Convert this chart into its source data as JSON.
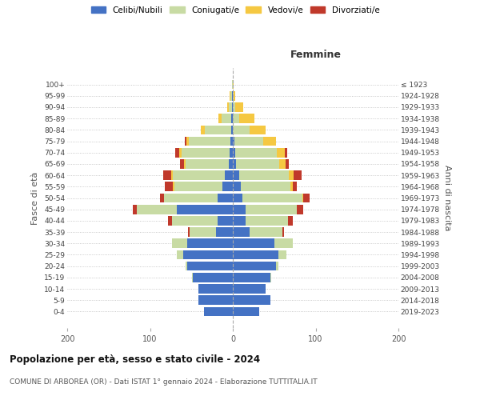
{
  "age_groups": [
    "0-4",
    "5-9",
    "10-14",
    "15-19",
    "20-24",
    "25-29",
    "30-34",
    "35-39",
    "40-44",
    "45-49",
    "50-54",
    "55-59",
    "60-64",
    "65-69",
    "70-74",
    "75-79",
    "80-84",
    "85-89",
    "90-94",
    "95-99",
    "100+"
  ],
  "birth_years": [
    "2019-2023",
    "2014-2018",
    "2009-2013",
    "2004-2008",
    "1999-2003",
    "1994-1998",
    "1989-1993",
    "1984-1988",
    "1979-1983",
    "1974-1978",
    "1969-1973",
    "1964-1968",
    "1959-1963",
    "1954-1958",
    "1949-1953",
    "1944-1948",
    "1939-1943",
    "1934-1938",
    "1929-1933",
    "1924-1928",
    "≤ 1923"
  ],
  "males": {
    "celibi": [
      35,
      42,
      42,
      48,
      55,
      60,
      55,
      20,
      18,
      68,
      18,
      13,
      10,
      5,
      4,
      3,
      2,
      2,
      1,
      1,
      0
    ],
    "coniugati": [
      0,
      0,
      0,
      1,
      2,
      8,
      18,
      32,
      55,
      48,
      65,
      58,
      62,
      52,
      58,
      50,
      32,
      12,
      4,
      2,
      1
    ],
    "vedovi": [
      0,
      0,
      0,
      0,
      0,
      0,
      0,
      0,
      0,
      0,
      0,
      1,
      2,
      2,
      3,
      3,
      5,
      3,
      2,
      1,
      0
    ],
    "divorziati": [
      0,
      0,
      0,
      0,
      0,
      0,
      0,
      2,
      5,
      5,
      5,
      10,
      10,
      5,
      5,
      2,
      0,
      0,
      0,
      0,
      0
    ]
  },
  "females": {
    "nubili": [
      32,
      45,
      40,
      45,
      52,
      55,
      50,
      20,
      15,
      15,
      12,
      10,
      8,
      4,
      3,
      2,
      0,
      0,
      0,
      0,
      0
    ],
    "coniugate": [
      0,
      0,
      0,
      1,
      3,
      10,
      22,
      40,
      52,
      62,
      72,
      60,
      60,
      52,
      50,
      35,
      20,
      8,
      3,
      1,
      0
    ],
    "vedove": [
      0,
      0,
      0,
      0,
      0,
      0,
      0,
      0,
      0,
      0,
      1,
      2,
      5,
      8,
      10,
      15,
      20,
      18,
      10,
      2,
      1
    ],
    "divorziate": [
      0,
      0,
      0,
      0,
      0,
      0,
      0,
      2,
      5,
      8,
      8,
      5,
      10,
      4,
      3,
      0,
      0,
      0,
      0,
      0,
      0
    ]
  },
  "colors": {
    "celibi_nubili": "#4472C4",
    "coniugati": "#c8dba4",
    "vedovi": "#f5c842",
    "divorziati": "#c0392b"
  },
  "xlim": 200,
  "title": "Popolazione per età, sesso e stato civile - 2024",
  "subtitle": "COMUNE DI ARBOREA (OR) - Dati ISTAT 1° gennaio 2024 - Elaborazione TUTTITALIA.IT",
  "label_femmine": "Femmine",
  "label_fasce": "Fasce di età",
  "label_anni": "Anni di nascita",
  "bg_color": "#ffffff",
  "grid_color": "#bbbbbb"
}
